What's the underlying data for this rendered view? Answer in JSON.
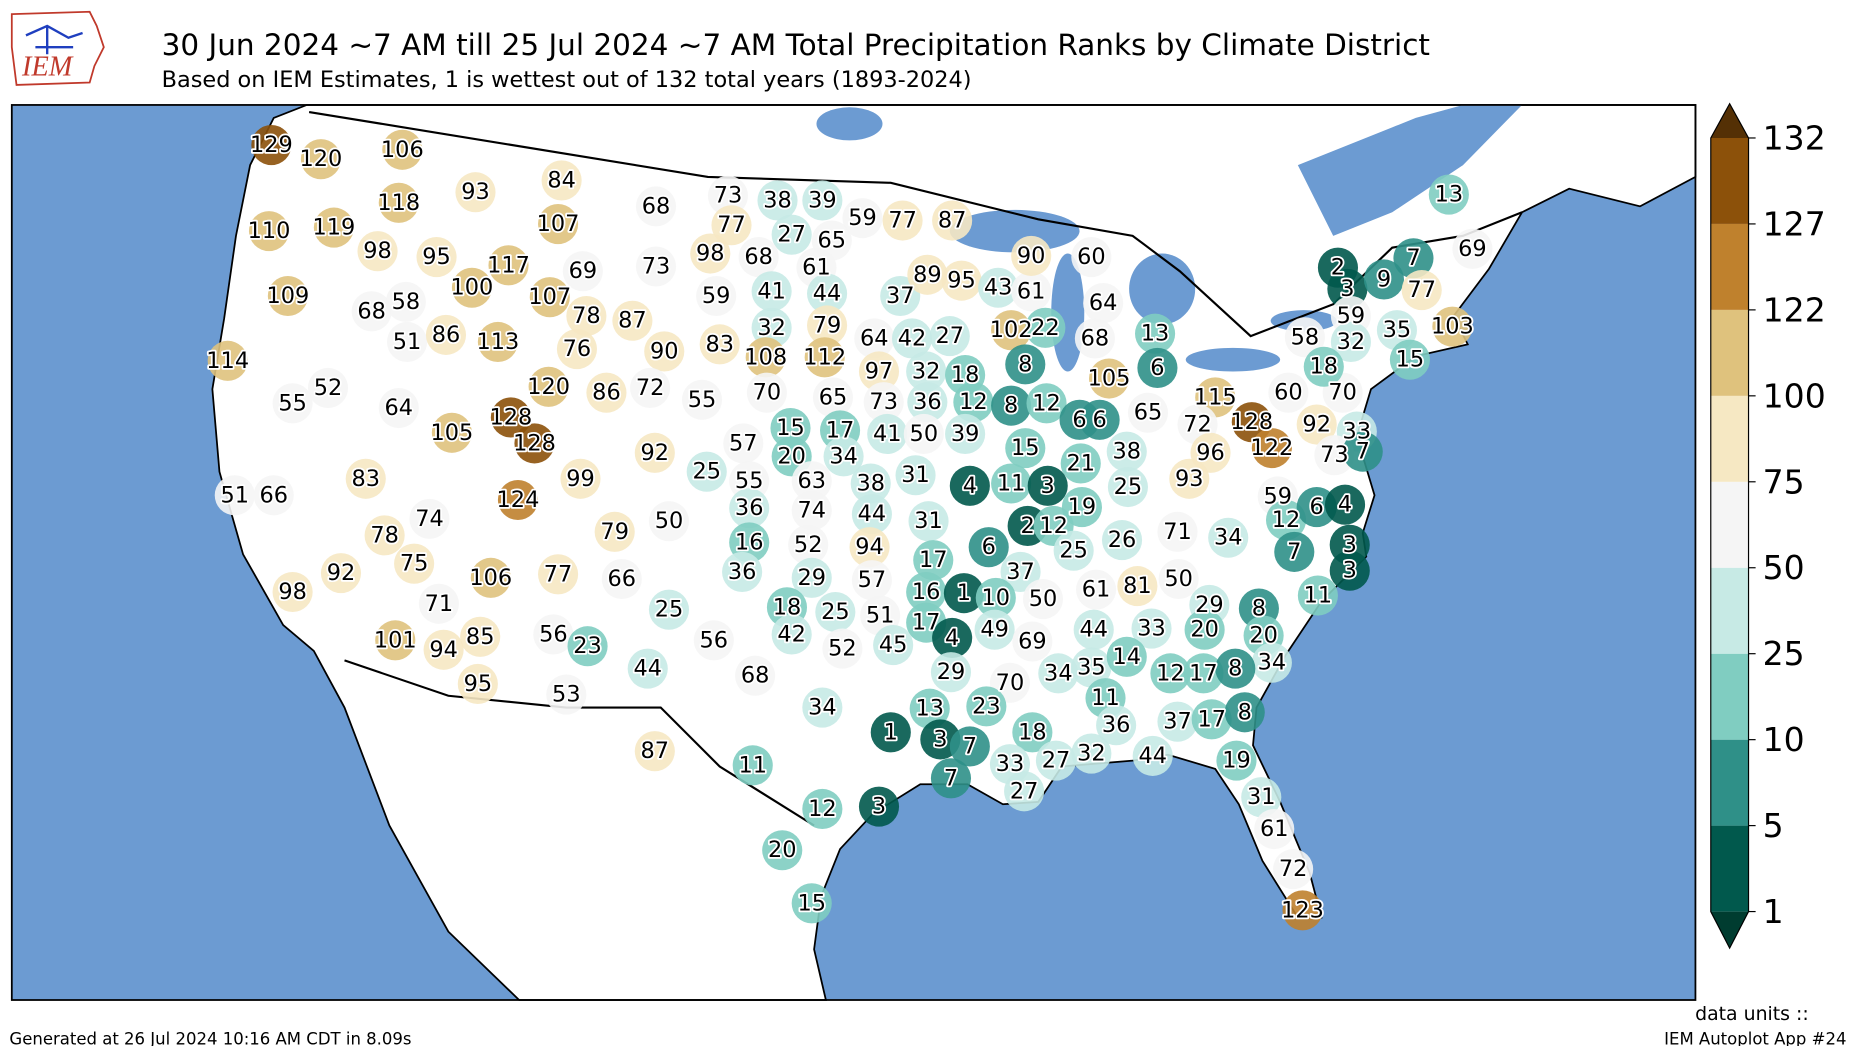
{
  "header": {
    "title": "30 Jun 2024 ~7 AM till 25 Jul 2024 ~7 AM Total Precipitation Ranks by Climate District",
    "subtitle": "Based on IEM Estimates, 1 is wettest out of 132 total years (1893-2024)"
  },
  "logo_text": "IEM",
  "map": {
    "district_ranks": [
      129,
      120,
      106,
      118,
      110,
      119,
      98,
      93,
      84,
      107,
      68,
      95,
      117,
      69,
      73,
      109,
      100,
      107,
      78,
      87,
      68,
      58,
      51,
      86,
      113,
      76,
      90,
      114,
      52,
      64,
      55,
      120,
      86,
      72,
      128,
      128,
      105,
      92,
      83,
      99,
      51,
      66,
      124,
      79,
      50,
      74,
      78,
      75,
      106,
      92,
      98,
      71,
      77,
      66,
      25,
      101,
      94,
      85,
      56,
      23,
      44,
      95,
      53,
      73,
      38,
      39,
      77,
      27,
      65,
      59,
      77,
      87,
      98,
      68,
      61,
      59,
      41,
      44,
      37,
      89,
      95,
      43,
      61,
      90,
      60,
      32,
      79,
      83,
      108,
      112,
      64,
      42,
      27,
      102,
      22,
      8,
      64,
      68,
      13,
      6,
      105,
      97,
      32,
      18,
      73,
      36,
      12,
      8,
      12,
      55,
      70,
      65,
      15,
      17,
      57,
      20,
      34,
      41,
      50,
      39,
      15,
      6,
      6,
      65,
      38,
      21,
      25,
      55,
      63,
      38,
      31,
      4,
      11,
      3,
      36,
      74,
      44,
      19,
      25,
      31,
      2,
      12,
      6,
      16,
      52,
      94,
      17,
      25,
      26,
      71,
      37,
      36,
      29,
      57,
      16,
      1,
      10,
      50,
      61,
      81,
      50,
      18,
      25,
      51,
      17,
      4,
      49,
      42,
      52,
      45,
      69,
      29,
      56,
      68,
      34,
      70,
      13,
      23,
      3,
      7,
      1,
      18,
      33,
      27,
      32,
      7,
      27,
      87,
      11,
      12,
      3,
      20,
      15,
      115,
      72,
      128,
      60,
      70,
      96,
      122,
      92,
      33,
      73,
      7,
      93,
      59,
      12,
      6,
      4,
      34,
      7,
      3,
      3,
      11,
      29,
      8,
      20,
      20,
      34,
      44,
      33,
      35,
      14,
      12,
      17,
      8,
      34,
      11,
      36,
      37,
      17,
      8,
      44,
      19,
      31,
      61,
      72,
      123,
      13,
      69,
      2,
      7,
      3,
      9,
      77,
      59,
      58,
      32,
      35,
      103,
      15,
      18
    ],
    "colorbar": {
      "boundaries": [
        1,
        5,
        10,
        25,
        50,
        75,
        100,
        122,
        127,
        132
      ],
      "colors": [
        "#01594d",
        "#2f9088",
        "#80cdc1",
        "#c7eae5",
        "#f5f5f5",
        "#f6e8c3",
        "#dfc27d",
        "#bf812d",
        "#8c510a"
      ],
      "extend_colors": [
        "#003c30",
        "#543005"
      ]
    }
  },
  "footer": {
    "generated": "Generated at 26 Jul 2024 10:16 AM CDT in 8.09s",
    "units": "data units ::",
    "app": "IEM Autoplot App #24"
  }
}
